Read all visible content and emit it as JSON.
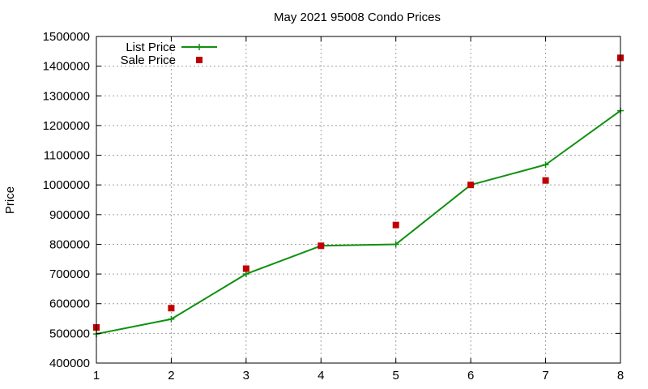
{
  "chart_data": {
    "type": "line",
    "title": "May 2021 95008 Condo Prices",
    "xlabel": "",
    "ylabel": "Price",
    "x": [
      1,
      2,
      3,
      4,
      5,
      6,
      7,
      8
    ],
    "xlim": [
      1,
      8
    ],
    "ylim": [
      400000,
      1500000
    ],
    "xticks": [
      1,
      2,
      3,
      4,
      5,
      6,
      7,
      8
    ],
    "yticks": [
      400000,
      500000,
      600000,
      700000,
      800000,
      900000,
      1000000,
      1100000,
      1200000,
      1300000,
      1400000,
      1500000
    ],
    "grid": true,
    "legend_position": "top-left",
    "series": [
      {
        "name": "List Price",
        "style": "linespoints",
        "marker": "plus",
        "color": "#109010",
        "values": [
          498000,
          548000,
          700000,
          795000,
          800000,
          1000000,
          1068000,
          1250000
        ]
      },
      {
        "name": "Sale Price",
        "style": "points",
        "marker": "square",
        "color": "#c00000",
        "values": [
          520000,
          585000,
          718000,
          795000,
          865000,
          1000000,
          1015000,
          1428000
        ]
      }
    ]
  }
}
